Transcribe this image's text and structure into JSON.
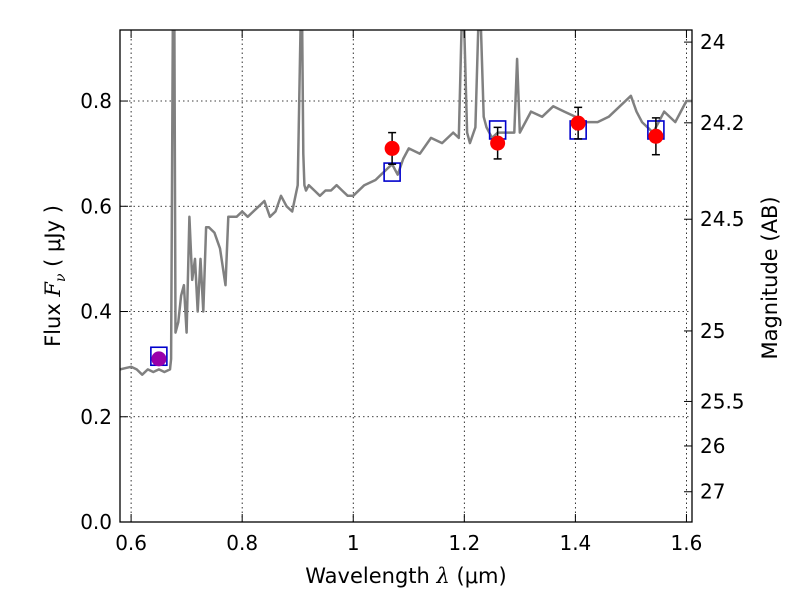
{
  "chart_data": {
    "type": "line",
    "title": "",
    "xlabel": {
      "prefix": "Wavelength  ",
      "sym": "λ",
      "suffix": " (μm)"
    },
    "ylabel": {
      "prefix": "Flux  ",
      "sym": "F",
      "sub": "ν",
      "suffix": "  ( μJy )"
    },
    "y2label": "Magnitude (AB)",
    "xlim": [
      0.58,
      1.61
    ],
    "ylim": [
      0.0,
      0.935
    ],
    "xticks": [
      0.6,
      0.8,
      1.0,
      1.2,
      1.4,
      1.6
    ],
    "xtick_labels": [
      "0.6",
      "0.8",
      "1",
      "1.2",
      "1.4",
      "1.6"
    ],
    "yticks": [
      0.0,
      0.2,
      0.4,
      0.6,
      0.8
    ],
    "ytick_labels": [
      "0.0",
      "0.2",
      "0.4",
      "0.6",
      "0.8"
    ],
    "y2ticks": [
      {
        "mag": "24",
        "flux": 0.912
      },
      {
        "mag": "24.2",
        "flux": 0.7586
      },
      {
        "mag": "24.5",
        "flux": 0.5754
      },
      {
        "mag": "25",
        "flux": 0.3631
      },
      {
        "mag": "25.5",
        "flux": 0.2291
      },
      {
        "mag": "26",
        "flux": 0.1445
      },
      {
        "mag": "27",
        "flux": 0.0575
      }
    ],
    "grid": true,
    "colors": {
      "sed": "#808080",
      "photometry": "#ff0000",
      "photometry_first": "#9900aa",
      "model": "#0000cc",
      "errorbar": "#000000"
    },
    "series": [
      {
        "kind": "line",
        "x": [
          0.58,
          0.6,
          0.61,
          0.62,
          0.63,
          0.64,
          0.65,
          0.66,
          0.67,
          0.672,
          0.675,
          0.678,
          0.68,
          0.685,
          0.69,
          0.695,
          0.7,
          0.705,
          0.71,
          0.715,
          0.72,
          0.725,
          0.73,
          0.735,
          0.74,
          0.75,
          0.76,
          0.77,
          0.775,
          0.78,
          0.79,
          0.8,
          0.81,
          0.82,
          0.83,
          0.84,
          0.85,
          0.86,
          0.87,
          0.88,
          0.89,
          0.9,
          0.905,
          0.908,
          0.91,
          0.912,
          0.915,
          0.92,
          0.93,
          0.94,
          0.95,
          0.96,
          0.97,
          0.98,
          0.99,
          1.0,
          1.02,
          1.04,
          1.05,
          1.06,
          1.07,
          1.08,
          1.09,
          1.1,
          1.12,
          1.14,
          1.16,
          1.18,
          1.19,
          1.195,
          1.2,
          1.205,
          1.21,
          1.22,
          1.225,
          1.23,
          1.235,
          1.24,
          1.25,
          1.26,
          1.28,
          1.29,
          1.295,
          1.3,
          1.31,
          1.32,
          1.34,
          1.36,
          1.38,
          1.4,
          1.42,
          1.44,
          1.46,
          1.48,
          1.5,
          1.51,
          1.52,
          1.54,
          1.56,
          1.58,
          1.6,
          1.61
        ],
        "y": [
          0.29,
          0.295,
          0.29,
          0.28,
          0.29,
          0.285,
          0.29,
          0.285,
          0.29,
          0.31,
          0.935,
          0.935,
          0.36,
          0.38,
          0.43,
          0.45,
          0.36,
          0.58,
          0.46,
          0.5,
          0.4,
          0.5,
          0.4,
          0.56,
          0.56,
          0.55,
          0.52,
          0.45,
          0.58,
          0.58,
          0.58,
          0.59,
          0.58,
          0.59,
          0.6,
          0.61,
          0.58,
          0.59,
          0.62,
          0.6,
          0.59,
          0.64,
          0.935,
          0.935,
          0.7,
          0.64,
          0.63,
          0.64,
          0.63,
          0.62,
          0.63,
          0.63,
          0.64,
          0.63,
          0.62,
          0.62,
          0.64,
          0.65,
          0.66,
          0.67,
          0.68,
          0.66,
          0.69,
          0.71,
          0.7,
          0.73,
          0.72,
          0.74,
          0.73,
          0.935,
          0.935,
          0.74,
          0.72,
          0.75,
          0.935,
          0.935,
          0.77,
          0.75,
          0.73,
          0.74,
          0.74,
          0.74,
          0.88,
          0.74,
          0.76,
          0.78,
          0.77,
          0.79,
          0.78,
          0.77,
          0.76,
          0.76,
          0.77,
          0.79,
          0.81,
          0.78,
          0.76,
          0.74,
          0.78,
          0.76,
          0.8,
          0.8
        ]
      },
      {
        "kind": "model",
        "points": [
          {
            "x": 0.65,
            "y": 0.315
          },
          {
            "x": 1.07,
            "y": 0.665
          },
          {
            "x": 1.26,
            "y": 0.745
          },
          {
            "x": 1.405,
            "y": 0.745
          },
          {
            "x": 1.545,
            "y": 0.745
          }
        ]
      },
      {
        "kind": "photometry",
        "points": [
          {
            "x": 0.65,
            "y": 0.31,
            "err": 0.01
          },
          {
            "x": 1.07,
            "y": 0.71,
            "err": 0.03
          },
          {
            "x": 1.26,
            "y": 0.72,
            "err": 0.03
          },
          {
            "x": 1.405,
            "y": 0.758,
            "err": 0.03
          },
          {
            "x": 1.545,
            "y": 0.733,
            "err": 0.035
          }
        ]
      }
    ]
  }
}
